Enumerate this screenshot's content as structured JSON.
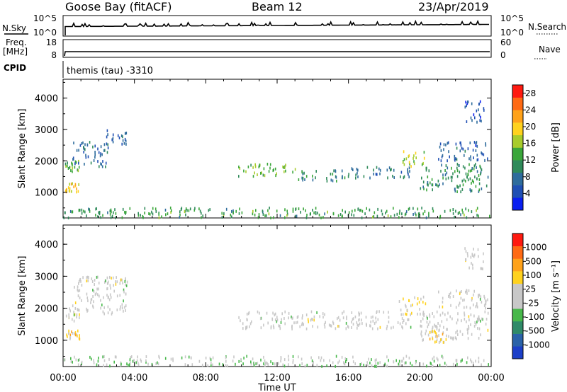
{
  "header": {
    "station": "Goose Bay (fitACF)",
    "beam": "Beam 12",
    "date": "23/Apr/2019"
  },
  "top_panels": {
    "nsky": {
      "label": "N.Sky",
      "right_label": "N.Search",
      "ticks_left": [
        "10^5",
        "10^0"
      ],
      "ticks_right": [
        "10^5",
        "10^0"
      ]
    },
    "freq": {
      "label_line1": "Freq.",
      "label_line2": "[MHz]",
      "right_label": "Nave",
      "ticks_left": [
        "18",
        "8"
      ],
      "ticks_right": [
        "60",
        "0"
      ]
    },
    "cpid": {
      "label": "CPID",
      "value": "themis (tau) -3310"
    }
  },
  "x_axis": {
    "label": "Time UT",
    "ticks": [
      "00:00",
      "04:00",
      "08:00",
      "12:00",
      "16:00",
      "20:00",
      "00:00"
    ],
    "range_hours": [
      0,
      24
    ]
  },
  "chart_data": [
    {
      "type": "heatmap",
      "title": "",
      "xlabel": "Time UT",
      "ylabel": "Slant Range [km]",
      "ylim": [
        180,
        4600
      ],
      "y_ticks": [
        "1000",
        "2000",
        "3000",
        "4000"
      ],
      "colorbar": {
        "label": "Power [dB]",
        "ticks": [
          "4",
          "8",
          "12",
          "16",
          "20",
          "24",
          "28"
        ],
        "range": [
          0,
          30
        ],
        "colors": [
          "#0a1ff0",
          "#1f4fb4",
          "#2e6c9c",
          "#2f8a5a",
          "#3aa63a",
          "#a8cc2c",
          "#ffd21e",
          "#ffa21a",
          "#ff6a14",
          "#ff1a10"
        ]
      },
      "echo_regions": [
        {
          "t": [
            0.1,
            0.9
          ],
          "range": [
            1000,
            1300
          ],
          "value": 20
        },
        {
          "t": [
            0.1,
            0.9
          ],
          "range": [
            1600,
            2000
          ],
          "value": 13
        },
        {
          "t": [
            0.5,
            2.5
          ],
          "range": [
            1800,
            2600
          ],
          "value": 7
        },
        {
          "t": [
            2.3,
            3.6
          ],
          "range": [
            2500,
            3000
          ],
          "value": 6
        },
        {
          "t": [
            0.0,
            23.9
          ],
          "range": [
            180,
            500
          ],
          "value": 12
        },
        {
          "t": [
            9.8,
            13.0
          ],
          "range": [
            1500,
            1900
          ],
          "value": 14
        },
        {
          "t": [
            13.0,
            16.0
          ],
          "range": [
            1350,
            1700
          ],
          "value": 10
        },
        {
          "t": [
            16.0,
            19.5
          ],
          "range": [
            1450,
            1800
          ],
          "value": 9
        },
        {
          "t": [
            19.0,
            20.3
          ],
          "range": [
            1800,
            2300
          ],
          "value": 17
        },
        {
          "t": [
            20.0,
            23.8
          ],
          "range": [
            1000,
            1900
          ],
          "value": 11
        },
        {
          "t": [
            21.0,
            23.8
          ],
          "range": [
            2000,
            2600
          ],
          "value": 6
        },
        {
          "t": [
            22.5,
            23.6
          ],
          "range": [
            3200,
            3900
          ],
          "value": 5
        }
      ]
    },
    {
      "type": "heatmap",
      "title": "",
      "xlabel": "Time UT",
      "ylabel": "Slant Range [km]",
      "ylim": [
        180,
        4600
      ],
      "y_ticks": [
        "1000",
        "2000",
        "3000",
        "4000"
      ],
      "colorbar": {
        "label": "Velocity [m s⁻¹]",
        "ticks": [
          "1000",
          "500",
          "100",
          "25",
          "-25",
          "-100",
          "-500",
          "-1000"
        ],
        "range": [
          -1200,
          1200
        ],
        "colors": [
          "#1c3fc8",
          "#2a62a8",
          "#2f8a68",
          "#47b84a",
          "#c8c8c8",
          "#c8c8c8",
          "#ffd21e",
          "#ffa21a",
          "#ff6a14",
          "#ff1a10"
        ]
      },
      "echo_regions": [
        {
          "t": [
            0.1,
            0.9
          ],
          "range": [
            1000,
            1300
          ],
          "value": 300
        },
        {
          "t": [
            0.1,
            0.9
          ],
          "range": [
            1600,
            2000
          ],
          "value": 0
        },
        {
          "t": [
            0.5,
            3.6
          ],
          "range": [
            1800,
            3000
          ],
          "value": 0
        },
        {
          "t": [
            0.0,
            23.9
          ],
          "range": [
            180,
            500
          ],
          "value": -150
        },
        {
          "t": [
            9.8,
            19.5
          ],
          "range": [
            1350,
            1900
          ],
          "value": 0
        },
        {
          "t": [
            18.8,
            20.3
          ],
          "range": [
            1800,
            2400
          ],
          "value": 200
        },
        {
          "t": [
            20.0,
            23.8
          ],
          "range": [
            1000,
            1900
          ],
          "value": 0
        },
        {
          "t": [
            20.5,
            21.5
          ],
          "range": [
            900,
            1300
          ],
          "value": 300
        },
        {
          "t": [
            21.0,
            23.8
          ],
          "range": [
            2000,
            2600
          ],
          "value": 0
        },
        {
          "t": [
            22.5,
            23.6
          ],
          "range": [
            3200,
            3900
          ],
          "value": 0
        }
      ]
    }
  ]
}
